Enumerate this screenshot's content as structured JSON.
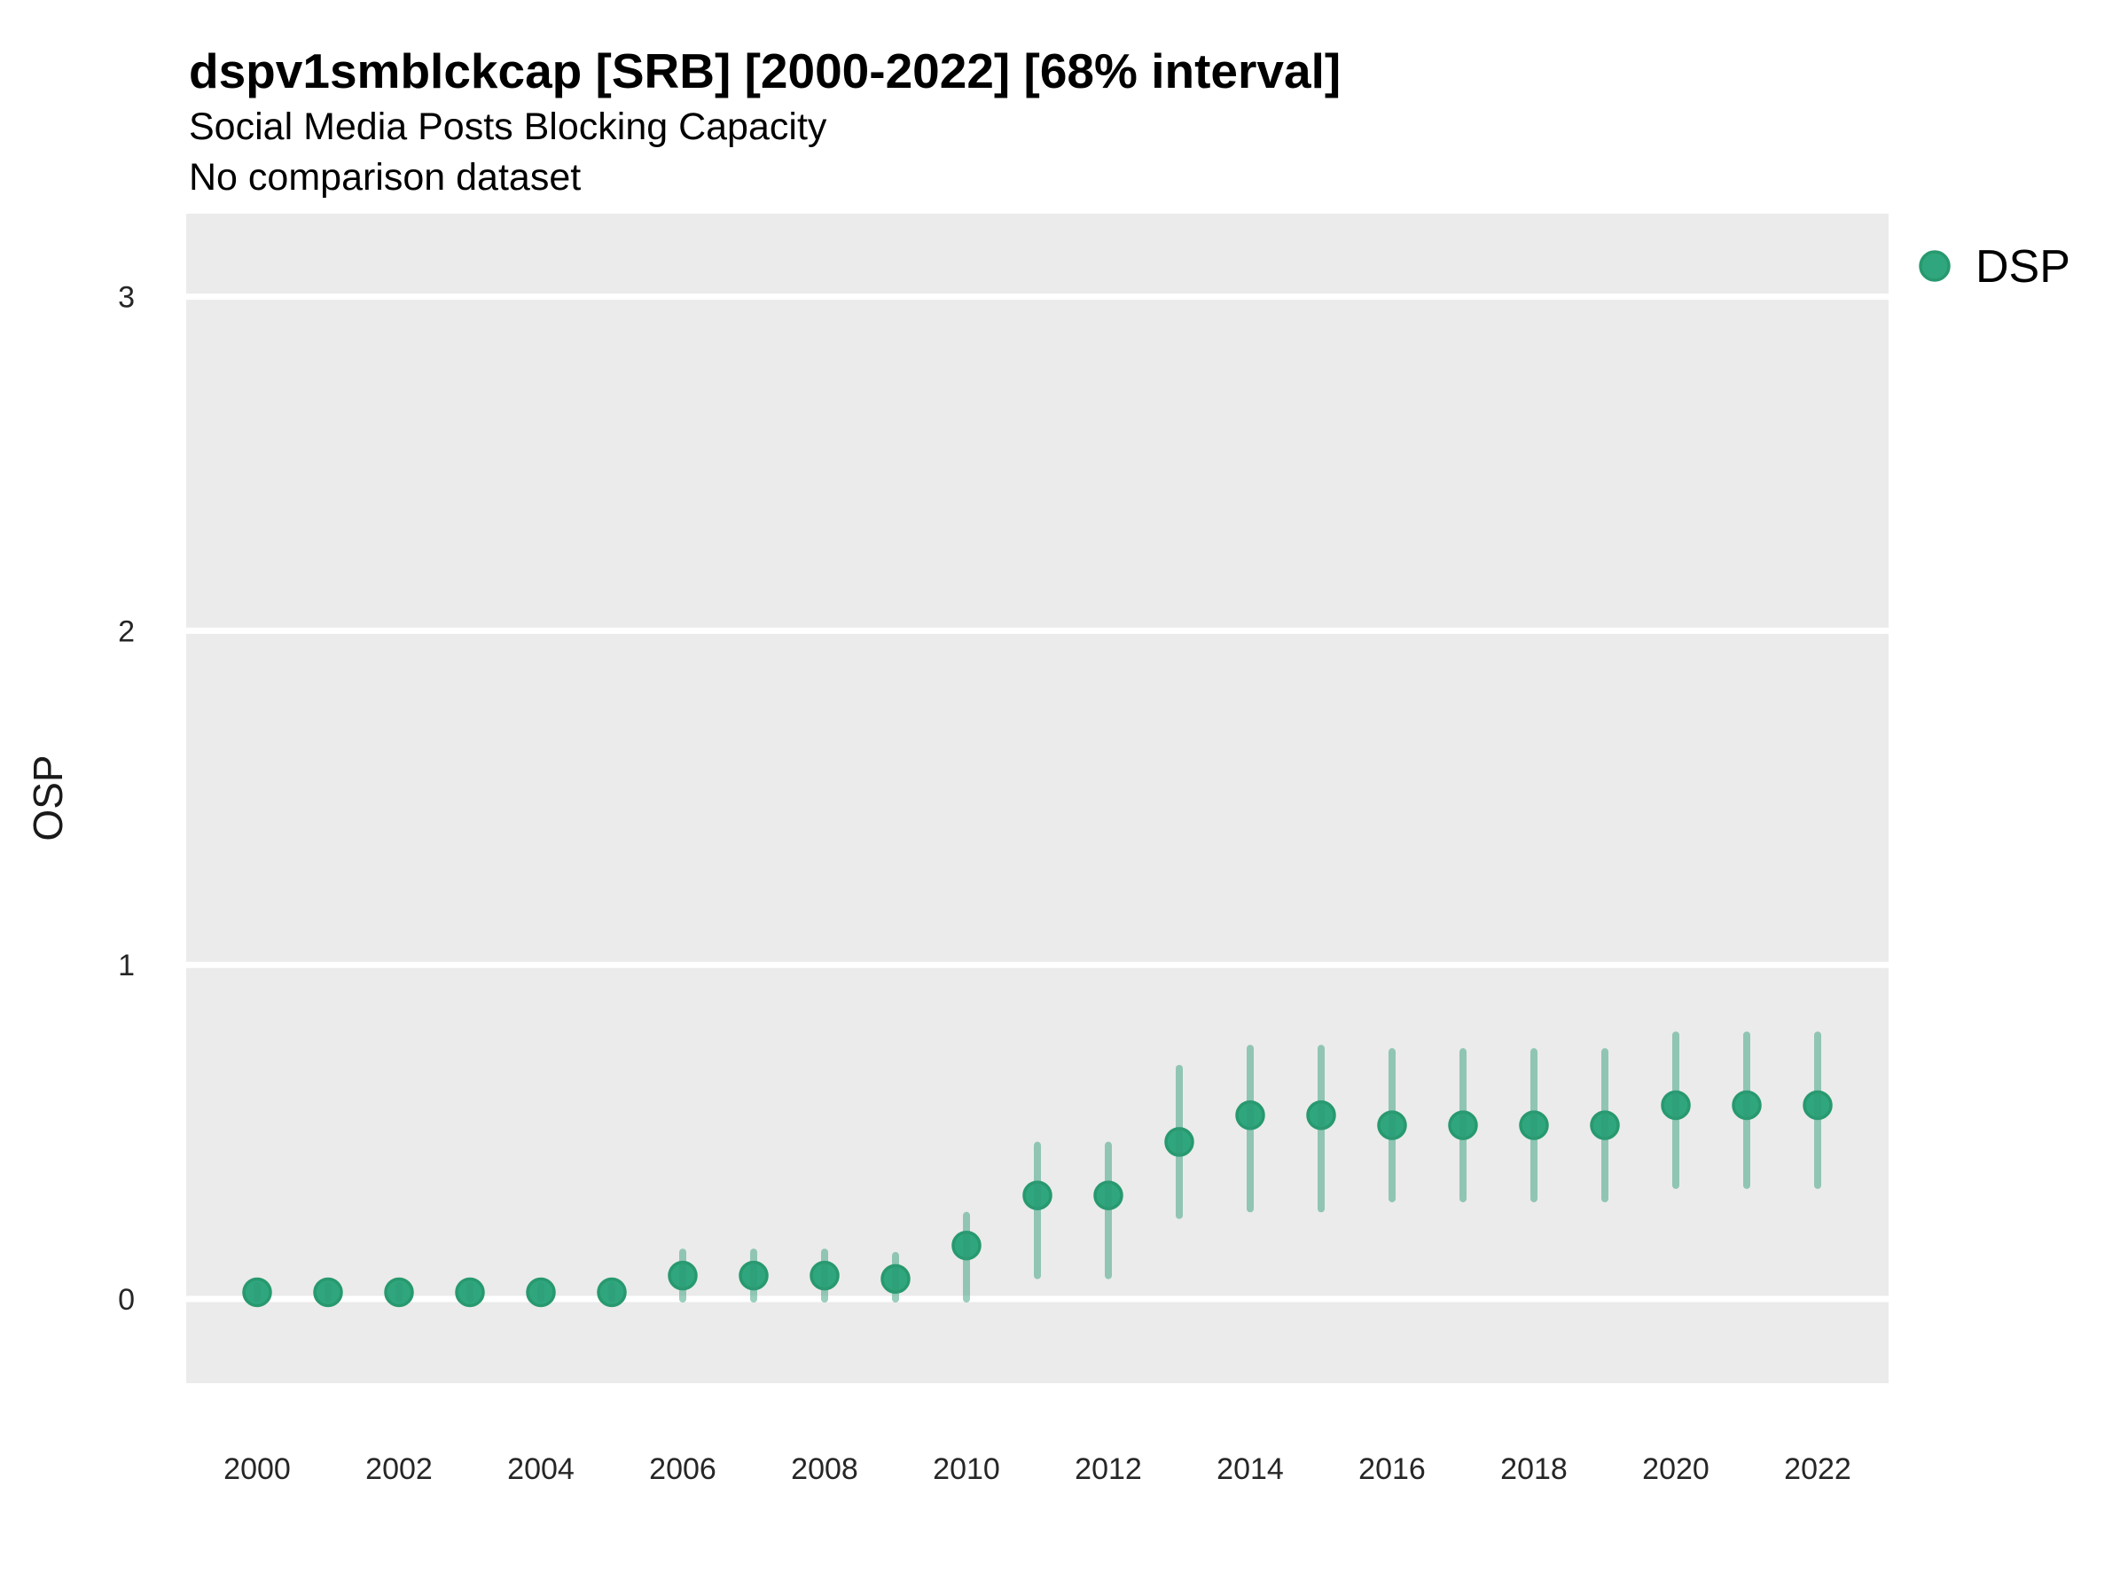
{
  "header": {
    "title": "dspv1smblckcap [SRB] [2000-2022] [68% interval]",
    "subtitle": "Social Media Posts Blocking Capacity",
    "note": "No comparison dataset"
  },
  "axes": {
    "y_label": "OSP",
    "x_label": ""
  },
  "legend": {
    "label": "DSP",
    "marker": "filled-circle"
  },
  "colors": {
    "background": "#ffffff",
    "panel_bg": "#ebebeb",
    "grid": "#ffffff",
    "point_fill": "#30a67e",
    "point_stroke": "#28996f",
    "interval": "#2f9d77",
    "axis_text": "#262626",
    "title_text": "#000000"
  },
  "chart_data": {
    "type": "scatter",
    "subtype": "pointrange (dot with vertical 68% interval bar)",
    "title": "dspv1smblckcap [SRB] [2000-2022] [68% interval]",
    "subtitle": "Social Media Posts Blocking Capacity",
    "note": "No comparison dataset",
    "xlabel": "",
    "ylabel": "OSP",
    "xlim": [
      1999,
      2023
    ],
    "ylim": [
      -0.25,
      3.25
    ],
    "x_ticks": [
      2000,
      2002,
      2004,
      2006,
      2008,
      2010,
      2012,
      2014,
      2016,
      2018,
      2020,
      2022
    ],
    "y_ticks": [
      0,
      1,
      2,
      3
    ],
    "grid": "horizontal major gridlines only, white on gray panel",
    "legend_position": "top-right outside panel",
    "interval_level": "68%",
    "series": [
      {
        "name": "DSP",
        "points": [
          {
            "year": 2000,
            "value": 0.02,
            "low": 0.0,
            "high": 0.04
          },
          {
            "year": 2001,
            "value": 0.02,
            "low": 0.0,
            "high": 0.04
          },
          {
            "year": 2002,
            "value": 0.02,
            "low": 0.0,
            "high": 0.04
          },
          {
            "year": 2003,
            "value": 0.02,
            "low": 0.0,
            "high": 0.04
          },
          {
            "year": 2004,
            "value": 0.02,
            "low": 0.0,
            "high": 0.04
          },
          {
            "year": 2005,
            "value": 0.02,
            "low": 0.0,
            "high": 0.04
          },
          {
            "year": 2006,
            "value": 0.07,
            "low": 0.0,
            "high": 0.14
          },
          {
            "year": 2007,
            "value": 0.07,
            "low": 0.0,
            "high": 0.14
          },
          {
            "year": 2008,
            "value": 0.07,
            "low": 0.0,
            "high": 0.14
          },
          {
            "year": 2009,
            "value": 0.06,
            "low": 0.0,
            "high": 0.13
          },
          {
            "year": 2010,
            "value": 0.16,
            "low": 0.0,
            "high": 0.25
          },
          {
            "year": 2011,
            "value": 0.31,
            "low": 0.07,
            "high": 0.46
          },
          {
            "year": 2012,
            "value": 0.31,
            "low": 0.07,
            "high": 0.46
          },
          {
            "year": 2013,
            "value": 0.47,
            "low": 0.25,
            "high": 0.69
          },
          {
            "year": 2014,
            "value": 0.55,
            "low": 0.27,
            "high": 0.75
          },
          {
            "year": 2015,
            "value": 0.55,
            "low": 0.27,
            "high": 0.75
          },
          {
            "year": 2016,
            "value": 0.52,
            "low": 0.3,
            "high": 0.74
          },
          {
            "year": 2017,
            "value": 0.52,
            "low": 0.3,
            "high": 0.74
          },
          {
            "year": 2018,
            "value": 0.52,
            "low": 0.3,
            "high": 0.74
          },
          {
            "year": 2019,
            "value": 0.52,
            "low": 0.3,
            "high": 0.74
          },
          {
            "year": 2020,
            "value": 0.58,
            "low": 0.34,
            "high": 0.79
          },
          {
            "year": 2021,
            "value": 0.58,
            "low": 0.34,
            "high": 0.79
          },
          {
            "year": 2022,
            "value": 0.58,
            "low": 0.34,
            "high": 0.79
          }
        ]
      }
    ]
  }
}
